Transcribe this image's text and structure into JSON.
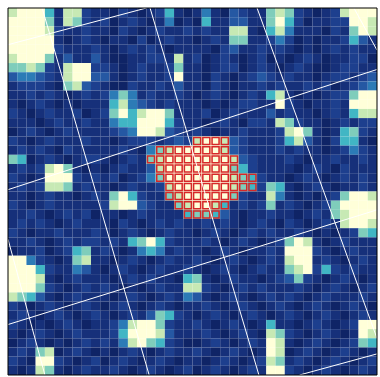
{
  "chart_data": {
    "type": "heatmap",
    "xlim": [
      0,
      40
    ],
    "ylim": [
      0,
      40
    ],
    "tick_labels": false,
    "zlim": [
      0,
      9
    ],
    "colors": [
      "#0a1a4f",
      "#0f2466",
      "#16307a",
      "#1d3f8e",
      "#2558a3",
      "#2c7bb6",
      "#41b6c4",
      "#7fcdbb",
      "#c7e9b4",
      "#ffffd9"
    ],
    "color": "#d62728",
    "cells": [
      [
        8,
        9,
        9,
        9,
        6,
        2,
        8,
        8,
        3,
        2,
        2,
        1,
        3,
        2,
        1,
        2,
        3,
        6,
        2,
        1,
        2,
        5,
        2,
        1,
        4,
        3,
        2,
        2,
        7,
        8,
        7,
        3,
        2,
        1,
        2,
        3,
        8,
        9,
        9,
        9
      ],
      [
        9,
        9,
        9,
        9,
        7,
        2,
        8,
        7,
        3,
        2,
        3,
        1,
        2,
        3,
        2,
        1,
        2,
        5,
        1,
        2,
        1,
        6,
        2,
        2,
        4,
        4,
        2,
        2,
        7,
        9,
        6,
        3,
        1,
        2,
        2,
        3,
        3,
        9,
        9,
        8
      ],
      [
        9,
        9,
        9,
        9,
        8,
        3,
        2,
        2,
        3,
        2,
        2,
        1,
        3,
        2,
        1,
        2,
        3,
        2,
        2,
        3,
        2,
        3,
        2,
        2,
        8,
        8,
        2,
        1,
        6,
        8,
        5,
        2,
        2,
        2,
        1,
        3,
        2,
        7,
        9,
        8
      ],
      [
        9,
        9,
        9,
        9,
        9,
        2,
        1,
        2,
        3,
        2,
        1,
        2,
        2,
        1,
        3,
        1,
        2,
        3,
        2,
        2,
        1,
        2,
        3,
        2,
        7,
        7,
        2,
        2,
        3,
        5,
        3,
        1,
        2,
        1,
        2,
        2,
        3,
        6,
        4,
        2
      ],
      [
        9,
        9,
        9,
        9,
        9,
        3,
        2,
        2,
        2,
        3,
        2,
        1,
        2,
        3,
        2,
        3,
        2,
        1,
        2,
        2,
        2,
        2,
        1,
        3,
        4,
        2,
        2,
        3,
        2,
        3,
        2,
        1,
        2,
        1,
        2,
        3,
        2,
        3,
        2,
        2
      ],
      [
        8,
        9,
        9,
        9,
        7,
        2,
        4,
        2,
        2,
        4,
        2,
        1,
        1,
        2,
        2,
        3,
        3,
        2,
        8,
        2,
        3,
        1,
        2,
        3,
        2,
        1,
        2,
        3,
        1,
        2,
        1,
        2,
        3,
        2,
        1,
        2,
        2,
        3,
        3,
        1
      ],
      [
        7,
        7,
        8,
        7,
        3,
        2,
        8,
        9,
        9,
        3,
        3,
        2,
        1,
        2,
        3,
        2,
        2,
        3,
        7,
        2,
        2,
        1,
        2,
        3,
        3,
        1,
        2,
        3,
        2,
        1,
        2,
        3,
        2,
        1,
        1,
        2,
        3,
        3,
        2,
        2
      ],
      [
        4,
        5,
        5,
        4,
        3,
        2,
        8,
        9,
        9,
        4,
        4,
        2,
        1,
        2,
        3,
        2,
        2,
        3,
        9,
        2,
        2,
        1,
        3,
        2,
        1,
        2,
        3,
        4,
        3,
        2,
        3,
        2,
        2,
        1,
        2,
        3,
        3,
        2,
        3,
        4
      ],
      [
        2,
        3,
        3,
        3,
        2,
        1,
        7,
        8,
        4,
        3,
        2,
        1,
        1,
        3,
        2,
        2,
        3,
        2,
        4,
        2,
        2,
        1,
        3,
        2,
        1,
        2,
        2,
        3,
        2,
        3,
        2,
        2,
        3,
        2,
        3,
        1,
        2,
        3,
        4,
        5
      ],
      [
        2,
        2,
        3,
        2,
        3,
        2,
        1,
        2,
        3,
        2,
        3,
        5,
        7,
        5,
        2,
        3,
        2,
        2,
        3,
        2,
        1,
        2,
        3,
        2,
        1,
        2,
        3,
        2,
        6,
        8,
        2,
        1,
        2,
        1,
        2,
        3,
        3,
        7,
        9,
        9
      ],
      [
        2,
        1,
        2,
        3,
        2,
        1,
        2,
        1,
        2,
        2,
        2,
        6,
        8,
        5,
        4,
        3,
        2,
        3,
        2,
        2,
        2,
        1,
        2,
        1,
        2,
        3,
        3,
        2,
        2,
        9,
        3,
        2,
        1,
        2,
        2,
        3,
        2,
        9,
        9,
        9
      ],
      [
        3,
        2,
        1,
        2,
        3,
        2,
        2,
        3,
        1,
        2,
        3,
        7,
        9,
        6,
        8,
        9,
        9,
        7,
        2,
        2,
        2,
        3,
        1,
        2,
        3,
        2,
        2,
        2,
        4,
        2,
        3,
        2,
        2,
        1,
        2,
        3,
        2,
        6,
        8,
        8
      ],
      [
        2,
        2,
        2,
        1,
        2,
        3,
        2,
        2,
        3,
        2,
        2,
        5,
        6,
        6,
        9,
        9,
        9,
        6,
        3,
        2,
        2,
        1,
        2,
        3,
        2,
        1,
        3,
        3,
        2,
        8,
        7,
        3,
        2,
        2,
        1,
        2,
        3,
        2,
        3,
        3
      ],
      [
        1,
        2,
        3,
        2,
        1,
        2,
        3,
        2,
        2,
        2,
        2,
        3,
        4,
        5,
        9,
        9,
        8,
        4,
        3,
        2,
        3,
        2,
        1,
        2,
        2,
        3,
        2,
        2,
        2,
        3,
        8,
        9,
        7,
        2,
        1,
        2,
        6,
        7,
        3,
        2
      ],
      [
        3,
        2,
        1,
        2,
        3,
        2,
        2,
        2,
        3,
        2,
        2,
        1,
        2,
        3,
        3,
        3,
        2,
        3,
        4,
        3,
        8,
        9,
        9,
        8,
        4,
        3,
        2,
        2,
        2,
        3,
        6,
        8,
        4,
        2,
        1,
        3,
        6,
        6,
        2,
        1
      ],
      [
        2,
        3,
        2,
        3,
        2,
        1,
        3,
        2,
        2,
        2,
        2,
        2,
        3,
        2,
        1,
        5,
        7,
        8,
        9,
        9,
        9,
        9,
        9,
        8,
        4,
        3,
        2,
        2,
        2,
        3,
        2,
        3,
        2,
        2,
        1,
        2,
        3,
        5,
        3,
        2
      ],
      [
        7,
        6,
        1,
        2,
        3,
        2,
        1,
        2,
        3,
        3,
        2,
        1,
        2,
        3,
        2,
        7,
        8,
        9,
        9,
        9,
        9,
        9,
        9,
        9,
        8,
        4,
        3,
        2,
        2,
        2,
        3,
        2,
        1,
        2,
        2,
        3,
        2,
        2,
        3,
        2
      ],
      [
        2,
        3,
        2,
        3,
        8,
        9,
        7,
        2,
        1,
        2,
        1,
        2,
        3,
        2,
        2,
        4,
        8,
        9,
        9,
        9,
        9,
        9,
        9,
        9,
        7,
        6,
        3,
        2,
        2,
        2,
        2,
        1,
        2,
        3,
        2,
        1,
        3,
        2,
        2,
        2
      ],
      [
        3,
        2,
        1,
        2,
        9,
        9,
        9,
        3,
        2,
        3,
        2,
        3,
        1,
        2,
        3,
        5,
        7,
        9,
        9,
        9,
        9,
        9,
        9,
        9,
        8,
        7,
        6,
        3,
        2,
        2,
        1,
        2,
        3,
        2,
        1,
        2,
        3,
        2,
        3,
        2
      ],
      [
        2,
        3,
        2,
        3,
        8,
        8,
        7,
        2,
        3,
        2,
        2,
        1,
        2,
        3,
        2,
        2,
        3,
        8,
        9,
        9,
        9,
        9,
        9,
        9,
        8,
        7,
        6,
        3,
        7,
        6,
        2,
        1,
        2,
        3,
        2,
        1,
        2,
        2,
        3,
        2
      ],
      [
        2,
        2,
        1,
        2,
        3,
        2,
        2,
        1,
        2,
        3,
        2,
        7,
        9,
        6,
        3,
        2,
        2,
        7,
        8,
        9,
        9,
        9,
        9,
        9,
        7,
        3,
        2,
        2,
        8,
        5,
        2,
        1,
        2,
        1,
        2,
        3,
        7,
        9,
        9,
        8
      ],
      [
        3,
        2,
        1,
        2,
        3,
        2,
        2,
        2,
        2,
        2,
        3,
        8,
        9,
        9,
        4,
        3,
        2,
        2,
        7,
        8,
        9,
        9,
        8,
        6,
        2,
        3,
        2,
        3,
        7,
        2,
        3,
        2,
        1,
        2,
        3,
        7,
        9,
        9,
        9,
        9
      ],
      [
        2,
        2,
        3,
        2,
        1,
        2,
        3,
        2,
        3,
        1,
        2,
        2,
        1,
        2,
        3,
        2,
        2,
        2,
        2,
        6,
        7,
        7,
        6,
        4,
        2,
        1,
        2,
        2,
        3,
        2,
        2,
        1,
        2,
        3,
        2,
        7,
        8,
        9,
        9,
        9
      ],
      [
        2,
        3,
        2,
        3,
        2,
        1,
        2,
        3,
        2,
        2,
        2,
        1,
        3,
        2,
        1,
        2,
        3,
        2,
        3,
        2,
        2,
        3,
        2,
        3,
        2,
        1,
        2,
        3,
        2,
        1,
        3,
        2,
        1,
        2,
        3,
        2,
        8,
        9,
        9,
        8
      ],
      [
        3,
        2,
        1,
        2,
        2,
        3,
        2,
        2,
        2,
        3,
        2,
        1,
        2,
        3,
        2,
        1,
        2,
        3,
        2,
        2,
        1,
        2,
        3,
        2,
        1,
        2,
        3,
        2,
        3,
        2,
        2,
        3,
        2,
        1,
        2,
        1,
        2,
        3,
        7,
        6
      ],
      [
        2,
        2,
        3,
        2,
        1,
        2,
        3,
        2,
        3,
        3,
        2,
        3,
        2,
        6,
        7,
        9,
        6,
        3,
        2,
        2,
        2,
        3,
        2,
        1,
        2,
        3,
        2,
        1,
        2,
        3,
        7,
        9,
        8,
        2,
        1,
        2,
        3,
        2,
        2,
        2
      ],
      [
        1,
        2,
        2,
        3,
        1,
        2,
        3,
        6,
        7,
        2,
        3,
        2,
        1,
        2,
        5,
        6,
        5,
        2,
        3,
        2,
        2,
        1,
        2,
        3,
        2,
        1,
        2,
        2,
        3,
        2,
        9,
        9,
        9,
        3,
        2,
        1,
        2,
        3,
        2,
        2
      ],
      [
        9,
        9,
        5,
        3,
        2,
        1,
        2,
        7,
        8,
        2,
        2,
        1,
        2,
        3,
        2,
        1,
        2,
        3,
        2,
        2,
        3,
        2,
        1,
        2,
        3,
        2,
        1,
        2,
        3,
        2,
        8,
        9,
        9,
        2,
        3,
        2,
        1,
        2,
        3,
        2
      ],
      [
        9,
        9,
        9,
        6,
        3,
        2,
        2,
        5,
        4,
        2,
        1,
        2,
        3,
        2,
        1,
        2,
        3,
        2,
        2,
        3,
        2,
        1,
        2,
        3,
        2,
        1,
        2,
        3,
        2,
        2,
        7,
        8,
        9,
        3,
        6,
        3,
        2,
        3,
        2,
        2
      ],
      [
        9,
        9,
        9,
        8,
        2,
        1,
        2,
        3,
        2,
        2,
        2,
        1,
        2,
        3,
        2,
        3,
        2,
        2,
        1,
        6,
        7,
        2,
        1,
        2,
        3,
        2,
        2,
        1,
        2,
        3,
        4,
        7,
        3,
        2,
        1,
        2,
        3,
        2,
        1,
        2
      ],
      [
        9,
        9,
        9,
        7,
        3,
        2,
        1,
        2,
        3,
        2,
        3,
        2,
        1,
        2,
        1,
        2,
        3,
        2,
        2,
        8,
        8,
        3,
        2,
        1,
        2,
        3,
        2,
        3,
        2,
        2,
        2,
        3,
        2,
        1,
        2,
        3,
        2,
        1,
        2,
        3
      ],
      [
        8,
        7,
        6,
        4,
        2,
        1,
        2,
        3,
        2,
        2,
        2,
        1,
        2,
        3,
        2,
        1,
        2,
        3,
        2,
        5,
        4,
        2,
        1,
        2,
        3,
        2,
        1,
        2,
        3,
        2,
        3,
        2,
        1,
        2,
        3,
        2,
        2,
        2,
        3,
        2
      ],
      [
        3,
        2,
        1,
        2,
        3,
        2,
        1,
        2,
        3,
        2,
        1,
        2,
        3,
        2,
        1,
        2,
        3,
        2,
        1,
        2,
        2,
        3,
        2,
        1,
        2,
        3,
        2,
        1,
        2,
        3,
        2,
        1,
        2,
        3,
        2,
        1,
        2,
        3,
        2,
        1
      ],
      [
        2,
        3,
        2,
        1,
        2,
        3,
        2,
        1,
        2,
        3,
        2,
        1,
        2,
        3,
        2,
        4,
        7,
        6,
        3,
        2,
        1,
        2,
        3,
        2,
        1,
        2,
        3,
        2,
        1,
        2,
        3,
        2,
        1,
        2,
        3,
        2,
        1,
        2,
        3,
        2
      ],
      [
        3,
        2,
        1,
        2,
        1,
        2,
        3,
        2,
        1,
        2,
        2,
        3,
        5,
        8,
        9,
        9,
        7,
        3,
        2,
        2,
        3,
        2,
        1,
        2,
        3,
        2,
        1,
        2,
        6,
        2,
        2,
        1,
        2,
        3,
        2,
        1,
        2,
        3,
        9,
        9
      ],
      [
        2,
        1,
        2,
        3,
        2,
        1,
        2,
        3,
        2,
        2,
        2,
        3,
        6,
        9,
        9,
        9,
        8,
        4,
        2,
        2,
        2,
        3,
        2,
        1,
        2,
        3,
        2,
        1,
        8,
        7,
        3,
        2,
        1,
        2,
        3,
        2,
        1,
        2,
        9,
        8
      ],
      [
        1,
        2,
        3,
        2,
        1,
        2,
        1,
        2,
        3,
        2,
        3,
        2,
        5,
        8,
        9,
        7,
        6,
        3,
        2,
        1,
        1,
        2,
        3,
        2,
        1,
        2,
        3,
        2,
        9,
        8,
        2,
        1,
        2,
        3,
        2,
        1,
        2,
        3,
        7,
        6
      ],
      [
        2,
        3,
        2,
        7,
        8,
        1,
        2,
        3,
        2,
        1,
        2,
        1,
        2,
        3,
        2,
        1,
        2,
        3,
        2,
        2,
        3,
        2,
        1,
        2,
        3,
        2,
        1,
        2,
        9,
        8,
        1,
        2,
        3,
        2,
        1,
        2,
        3,
        2,
        1,
        2
      ],
      [
        3,
        2,
        1,
        9,
        9,
        3,
        2,
        1,
        2,
        3,
        1,
        2,
        3,
        2,
        1,
        2,
        3,
        2,
        1,
        2,
        2,
        1,
        2,
        3,
        2,
        1,
        2,
        3,
        8,
        7,
        2,
        3,
        2,
        1,
        2,
        3,
        2,
        1,
        2,
        3
      ],
      [
        2,
        1,
        2,
        8,
        7,
        2,
        1,
        2,
        3,
        2,
        2,
        3,
        2,
        1,
        2,
        3,
        2,
        1,
        2,
        3,
        1,
        2,
        3,
        2,
        1,
        2,
        3,
        2,
        9,
        9,
        3,
        2,
        1,
        2,
        3,
        2,
        1,
        2,
        3,
        2
      ]
    ],
    "aperture": [
      [
        14,
        20,
        23
      ],
      [
        15,
        16,
        23
      ],
      [
        16,
        15,
        24
      ],
      [
        17,
        16,
        24
      ],
      [
        18,
        16,
        26
      ],
      [
        19,
        17,
        26
      ],
      [
        20,
        17,
        24
      ],
      [
        21,
        18,
        23
      ],
      [
        22,
        19,
        22
      ]
    ],
    "grid_lines": [
      [
        3.7,
        0,
        15.3,
        40
      ],
      [
        15.4,
        0,
        27.2,
        40
      ],
      [
        27,
        0,
        40,
        36
      ],
      [
        0,
        25.2,
        4,
        40
      ],
      [
        37.5,
        0,
        40,
        4.6
      ],
      [
        0,
        4,
        15,
        0
      ],
      [
        0,
        19.8,
        40,
        6.7
      ],
      [
        0,
        34.5,
        40,
        22
      ],
      [
        31.6,
        40,
        40,
        37.7
      ]
    ]
  }
}
